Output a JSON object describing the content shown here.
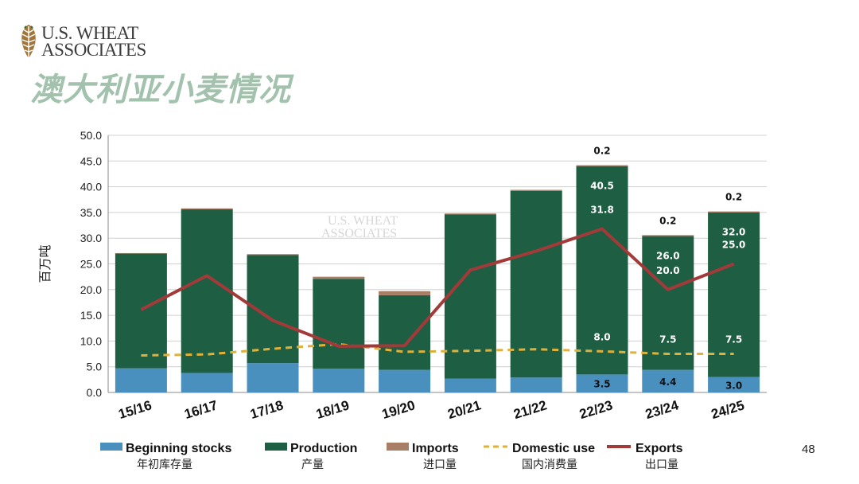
{
  "logo": {
    "line1": "U.S. WHEAT",
    "line2": "ASSOCIATES"
  },
  "title": "澳大利亚小麦情况",
  "page_number": "48",
  "colors": {
    "beginning_stocks": "#4a90bf",
    "production": "#1e5e42",
    "imports": "#a97e67",
    "domestic_use": "#e0b13a",
    "exports": "#a33a3a"
  },
  "chart_data": {
    "type": "bar",
    "categories": [
      "15/16",
      "16/17",
      "17/18",
      "18/19",
      "19/20",
      "20/21",
      "21/22",
      "22/23",
      "23/24",
      "24/25"
    ],
    "ylabel": "百万吨",
    "ylim": [
      0,
      50
    ],
    "yticks": [
      "0.0",
      "5.0",
      "10.0",
      "15.0",
      "20.0",
      "25.0",
      "30.0",
      "35.0",
      "40.0",
      "45.0",
      "50.0"
    ],
    "stacked_series": [
      {
        "name": "Beginning stocks",
        "name_cn": "年初库存量",
        "values": [
          4.7,
          3.8,
          5.7,
          4.6,
          4.4,
          2.7,
          2.9,
          3.5,
          4.4,
          3.0
        ]
      },
      {
        "name": "Production",
        "name_cn": "产量",
        "values": [
          22.3,
          31.8,
          21.0,
          17.5,
          14.5,
          31.9,
          36.3,
          40.5,
          26.0,
          32.0
        ]
      },
      {
        "name": "Imports",
        "name_cn": "进口量",
        "values": [
          0.1,
          0.2,
          0.2,
          0.4,
          0.8,
          0.2,
          0.2,
          0.2,
          0.2,
          0.2
        ]
      }
    ],
    "line_series": [
      {
        "name": "Domestic use",
        "name_cn": "国内消费量",
        "values": [
          7.2,
          7.4,
          8.5,
          9.4,
          7.9,
          8.1,
          8.4,
          8.0,
          7.5,
          7.5
        ]
      },
      {
        "name": "Exports",
        "name_cn": "出口量",
        "values": [
          16.1,
          22.7,
          14.0,
          9.0,
          9.1,
          23.8,
          27.5,
          31.8,
          20.0,
          25.0
        ]
      }
    ],
    "data_labels": {
      "7": {
        "imports": "0.2",
        "production": "40.5",
        "exports": "31.8",
        "domestic_use": "8.0",
        "beginning_stocks": "3.5"
      },
      "8": {
        "imports": "0.2",
        "production": "26.0",
        "exports": "20.0",
        "domestic_use": "7.5",
        "beginning_stocks": "4.4"
      },
      "9": {
        "imports": "0.2",
        "production": "32.0",
        "exports": "25.0",
        "domestic_use": "7.5",
        "beginning_stocks": "3.0"
      }
    },
    "watermark": {
      "line1": "U.S. WHEAT",
      "line2": "ASSOCIATES"
    },
    "grid": true,
    "legend_position": "bottom"
  }
}
